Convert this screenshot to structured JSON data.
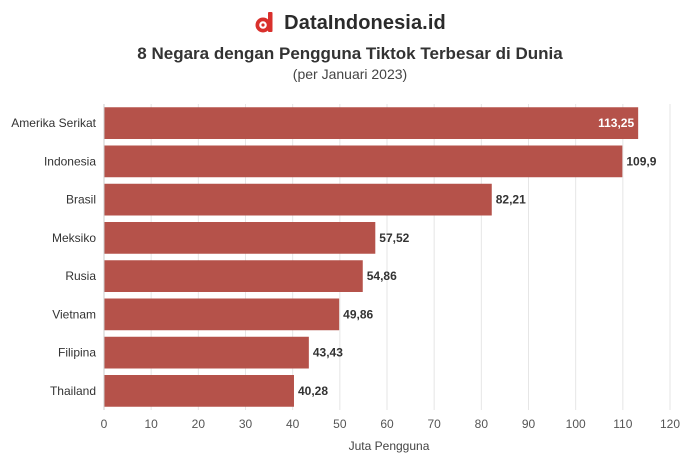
{
  "brand": {
    "name": "DataIndonesia.id",
    "logo_color": "#d9302c"
  },
  "chart_data": {
    "type": "bar",
    "orientation": "horizontal",
    "title": "8 Negara dengan Pengguna Tiktok Terbesar di Dunia",
    "subtitle": "(per Januari 2023)",
    "categories": [
      "Amerika Serikat",
      "Indonesia",
      "Brasil",
      "Meksiko",
      "Rusia",
      "Vietnam",
      "Filipina",
      "Thailand"
    ],
    "values": [
      113.25,
      109.9,
      82.21,
      57.52,
      54.86,
      49.86,
      43.43,
      40.28
    ],
    "value_labels": [
      "113,25",
      "109,9",
      "82,21",
      "57,52",
      "54,86",
      "49,86",
      "43,43",
      "40,28"
    ],
    "xlabel": "Juta Pengguna",
    "ylabel": "",
    "xlim": [
      0,
      120
    ],
    "xticks": [
      0,
      10,
      20,
      30,
      40,
      50,
      60,
      70,
      80,
      90,
      100,
      110,
      120
    ],
    "bar_color": "#b5524a",
    "grid": true
  }
}
